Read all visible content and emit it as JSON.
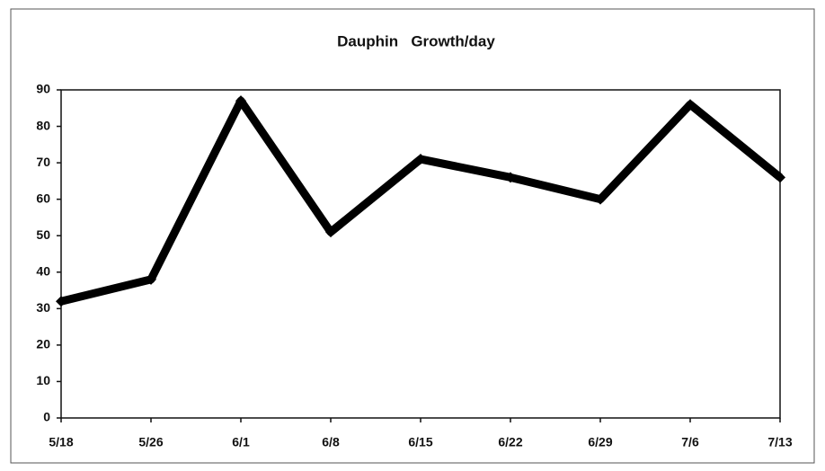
{
  "chart_data": {
    "type": "line",
    "title": "Dauphin   Growth/day",
    "categories": [
      "5/18",
      "5/26",
      "6/1",
      "6/8",
      "6/15",
      "6/22",
      "6/29",
      "7/6",
      "7/13"
    ],
    "series": [
      {
        "name": "Growth/day",
        "color": "#000000",
        "values": [
          32,
          38,
          87,
          51,
          71,
          66,
          60,
          86,
          66
        ]
      }
    ],
    "ylim": [
      0,
      90
    ],
    "yticks": [
      0,
      10,
      20,
      30,
      40,
      50,
      60,
      70,
      80,
      90
    ],
    "grid": false
  }
}
